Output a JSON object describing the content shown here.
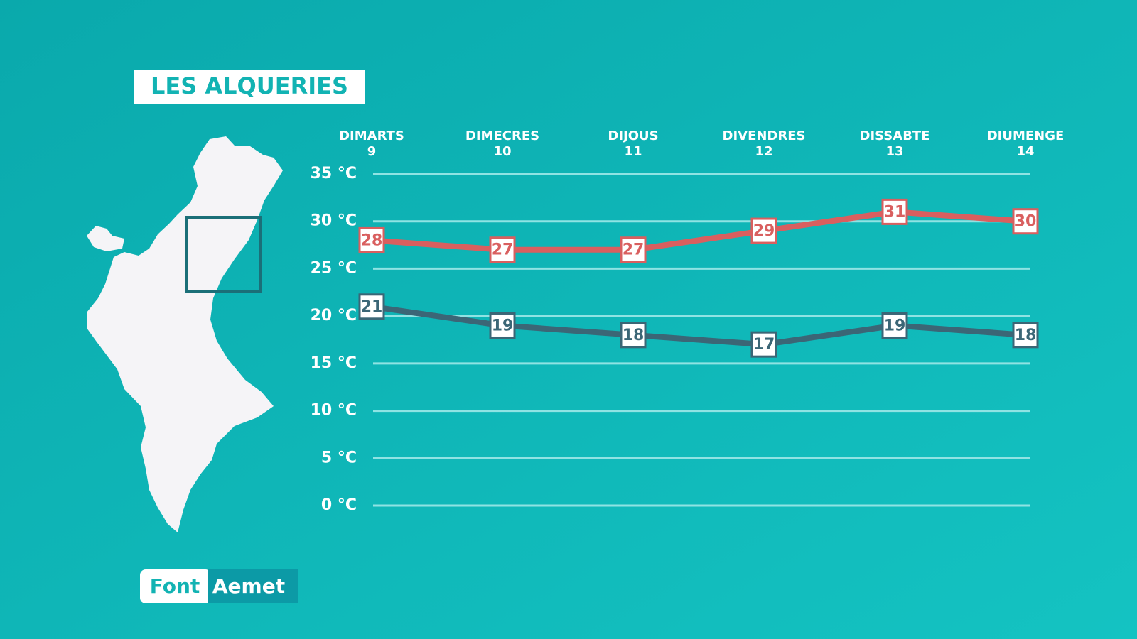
{
  "chart_data": {
    "type": "line",
    "title": "LES ALQUERIES",
    "source_label": "Font",
    "source": "Aemet",
    "categories": [
      [
        "DIMARTS",
        "9"
      ],
      [
        "DIMECRES",
        "10"
      ],
      [
        "DIJOUS",
        "11"
      ],
      [
        "DIVENDRES",
        "12"
      ],
      [
        "DISSABTE",
        "13"
      ],
      [
        "DIUMENGE",
        "14"
      ]
    ],
    "series": [
      {
        "color": "#d95f5f",
        "values": [
          28,
          27,
          27,
          29,
          31,
          30
        ]
      },
      {
        "color": "#3b6676",
        "values": [
          21,
          19,
          18,
          17,
          19,
          18
        ]
      }
    ],
    "ylim": [
      0,
      35
    ],
    "yticks": [
      {
        "value": 0,
        "label": "0 °C"
      },
      {
        "value": 5,
        "label": "5 °C"
      },
      {
        "value": 10,
        "label": "10 °C"
      },
      {
        "value": 15,
        "label": "15 °C"
      },
      {
        "value": 20,
        "label": "20 °C"
      },
      {
        "value": 25,
        "label": "25 °C"
      },
      {
        "value": 30,
        "label": "30 °C"
      },
      {
        "value": 35,
        "label": "35 °C"
      }
    ],
    "grid": true
  }
}
